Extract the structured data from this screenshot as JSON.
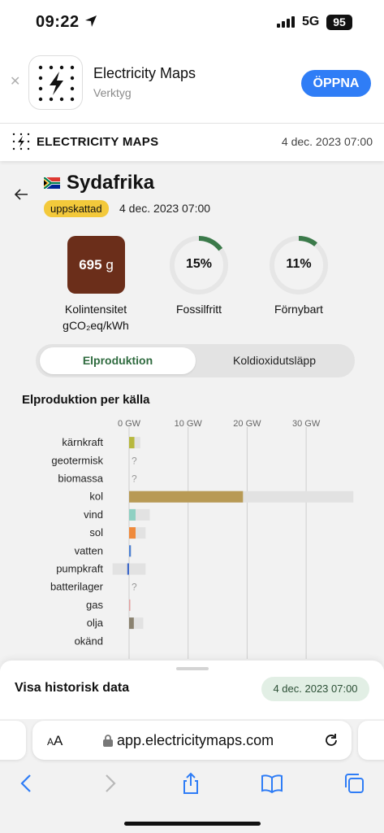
{
  "status_bar": {
    "time": "09:22",
    "network": "5G",
    "battery": "95"
  },
  "banner": {
    "app_name": "Electricity Maps",
    "category": "Verktyg",
    "open_label": "ÖPPNA"
  },
  "site_header": {
    "title": "ELECTRICITY MAPS",
    "date": "4 dec. 2023 07:00"
  },
  "zone": {
    "name": "Sydafrika",
    "badge": "uppskattad",
    "date": "4 dec. 2023 07:00"
  },
  "metrics": {
    "carbon_intensity": {
      "value": "695",
      "unit": "g",
      "label": "Kolintensitet",
      "sublabel": "gCO₂eq/kWh"
    },
    "fossil_free": {
      "value": "15%",
      "fraction": 0.15,
      "label": "Fossilfritt"
    },
    "renewable": {
      "value": "11%",
      "fraction": 0.11,
      "label": "Förnybart"
    }
  },
  "tabs": {
    "production": "Elproduktion",
    "emissions": "Koldioxidutsläpp"
  },
  "chart_title": "Elproduktion per källa",
  "chart_data": {
    "type": "bar",
    "title": "Elproduktion per källa",
    "xlim": [
      -1.5,
      38
    ],
    "xticks": [
      0,
      10,
      20,
      30
    ],
    "xtick_labels": [
      "0 GW",
      "10 GW",
      "20 GW",
      "30 GW"
    ],
    "unknown_marker": "?",
    "categories": [
      "kärnkraft",
      "geotermisk",
      "biomassa",
      "kol",
      "vind",
      "sol",
      "vatten",
      "pumpkraft",
      "batterilager",
      "gas",
      "olja",
      "okänd"
    ],
    "series": [
      {
        "values": [
          0.9,
          null,
          null,
          19.3,
          1.1,
          1.1,
          0.3,
          -0.3,
          null,
          0.05,
          0.8,
          0
        ]
      },
      {
        "values": [
          1.9,
          null,
          null,
          38,
          3.5,
          2.8,
          0.4,
          2.8,
          null,
          0.05,
          2.4,
          0
        ],
        "lower": [
          0,
          null,
          null,
          0,
          0,
          0,
          0,
          -2.8,
          null,
          0,
          0,
          0
        ]
      }
    ],
    "colors": [
      "#b7b83e",
      null,
      null,
      "#b89a55",
      "#8fd0c2",
      "#ef8a3c",
      "#4a7fd4",
      "#3c67c8",
      null,
      "#e2a0a0",
      "#8a8270",
      null
    ]
  },
  "sheet": {
    "label": "Visa historisk data",
    "date": "4 dec. 2023 07:00"
  },
  "safari": {
    "aa_label": "AA",
    "url": "app.electricitymaps.com"
  }
}
